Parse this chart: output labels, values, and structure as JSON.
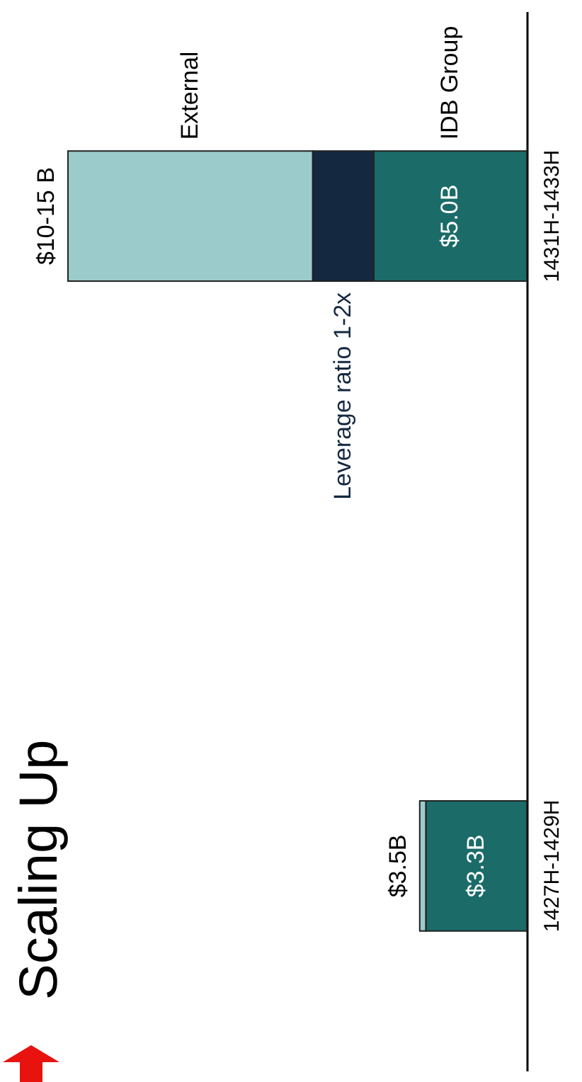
{
  "chart_data": {
    "type": "bar",
    "title": "Scaling Up",
    "categories": [
      "1431H-1433H",
      "1427H-1429H"
    ],
    "orientation": "horizontal",
    "stacked": true,
    "series": [
      {
        "name": "IDB Group",
        "color": "#1b6b69",
        "values": [
          5.0,
          3.3
        ],
        "value_labels": [
          "$5.0B",
          "$3.3B"
        ]
      },
      {
        "name": "Leverage ratio 1-2x",
        "color": "#142840",
        "values": [
          2.0,
          null
        ]
      },
      {
        "name": "External",
        "color": "#9ccbcb",
        "values": [
          8.0,
          0.2
        ]
      }
    ],
    "totals": [
      "$10-15 B",
      "$3.5B"
    ]
  }
}
